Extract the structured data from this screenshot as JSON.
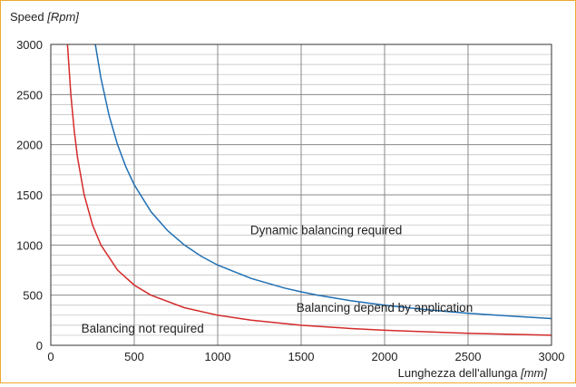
{
  "chart_data": {
    "type": "line",
    "title": "",
    "ylabel": "Speed",
    "ylabel_unit": "[Rpm]",
    "xlabel": "Lunghezza dell'allunga",
    "xlabel_unit": "[mm]",
    "xlim": [
      0,
      3000
    ],
    "ylim": [
      0,
      3000
    ],
    "x_ticks": [
      "0",
      "500",
      "1000",
      "1500",
      "2000",
      "2500",
      "3000"
    ],
    "y_ticks": [
      "0",
      "500",
      "1000",
      "1500",
      "2000",
      "2500",
      "3000"
    ],
    "grid": true,
    "legend": "none",
    "series": [
      {
        "color": "#1f6fb4",
        "x": [
          267,
          300,
          350,
          400,
          450,
          500,
          600,
          700,
          800,
          900,
          1000,
          1200,
          1400,
          1500,
          1600,
          1800,
          2000,
          2200,
          2400,
          2500,
          2600,
          2800,
          3000
        ],
        "y": [
          3000,
          2667,
          2286,
          2000,
          1778,
          1600,
          1333,
          1143,
          1000,
          889,
          800,
          667,
          571,
          533,
          500,
          444,
          400,
          364,
          333,
          320,
          308,
          286,
          267
        ]
      },
      {
        "color": "#d42a2a",
        "x": [
          100,
          120,
          140,
          160,
          200,
          250,
          300,
          400,
          500,
          600,
          800,
          1000,
          1200,
          1500,
          1800,
          2000,
          2500,
          3000
        ],
        "y": [
          3000,
          2500,
          2143,
          1875,
          1500,
          1200,
          1000,
          750,
          600,
          500,
          375,
          300,
          250,
          200,
          167,
          150,
          120,
          100
        ]
      }
    ],
    "annotations": [
      {
        "text": "Dynamic balancing required",
        "x": 1650,
        "y": 1150
      },
      {
        "text": "Balancing depend by application",
        "x": 2000,
        "y": 380
      },
      {
        "text": "Balancing not required",
        "x": 550,
        "y": 170
      }
    ]
  }
}
